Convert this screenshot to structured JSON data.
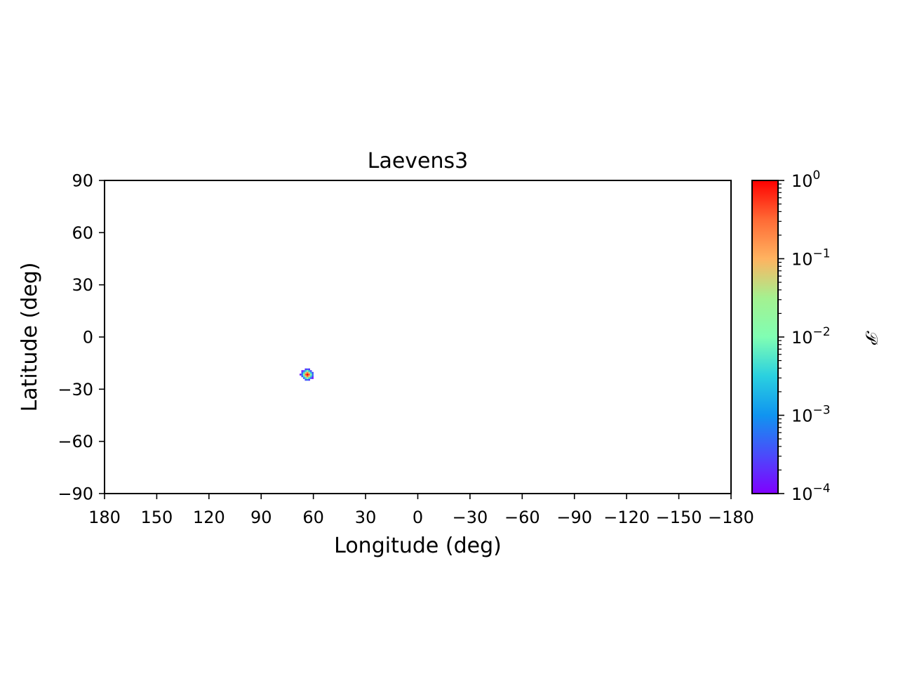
{
  "chart_data": {
    "type": "heatmap",
    "title": "Laevens3",
    "xlabel": "Longitude (deg)",
    "ylabel": "Latitude (deg)",
    "xlim": [
      180,
      -180
    ],
    "ylim": [
      -90,
      90
    ],
    "x_ticks": [
      180,
      150,
      120,
      90,
      60,
      30,
      0,
      -30,
      -60,
      -90,
      -120,
      -150,
      -180
    ],
    "y_ticks": [
      90,
      60,
      30,
      0,
      -30,
      -60,
      -90
    ],
    "x_tick_labels": [
      "180",
      "150",
      "120",
      "90",
      "60",
      "30",
      "0",
      "−30",
      "−60",
      "−90",
      "−120",
      "−150",
      "−180"
    ],
    "y_tick_labels": [
      "90",
      "60",
      "30",
      "0",
      "−30",
      "−60",
      "−90"
    ],
    "grid": false,
    "colorbar": {
      "label": "𝒫",
      "scale": "log",
      "colormap": "rainbow",
      "range": [
        0.0001,
        1
      ],
      "ticks": [
        1,
        0.1,
        0.01,
        0.001,
        0.0001
      ],
      "tick_base": "10",
      "tick_exponents": [
        "0",
        "−1",
        "−2",
        "−3",
        "−4"
      ]
    },
    "blob": {
      "center_lon": 63.5,
      "center_lat": -21.5,
      "points": [
        {
          "lon": 63.4,
          "lat": -21.6,
          "value": 1.0
        },
        {
          "lon": 64.4,
          "lat": -21.6,
          "value": 0.35
        },
        {
          "lon": 62.4,
          "lat": -21.6,
          "value": 0.3
        },
        {
          "lon": 63.4,
          "lat": -20.6,
          "value": 0.25
        },
        {
          "lon": 63.4,
          "lat": -22.6,
          "value": 0.3
        },
        {
          "lon": 64.4,
          "lat": -20.6,
          "value": 0.05
        },
        {
          "lon": 62.4,
          "lat": -20.6,
          "value": 0.04
        },
        {
          "lon": 64.4,
          "lat": -22.6,
          "value": 0.06
        },
        {
          "lon": 62.4,
          "lat": -22.6,
          "value": 0.05
        },
        {
          "lon": 65.4,
          "lat": -21.6,
          "value": 0.02
        },
        {
          "lon": 61.4,
          "lat": -21.6,
          "value": 0.015
        },
        {
          "lon": 63.4,
          "lat": -19.6,
          "value": 0.012
        },
        {
          "lon": 63.4,
          "lat": -23.6,
          "value": 0.02
        },
        {
          "lon": 65.4,
          "lat": -20.6,
          "value": 0.004
        },
        {
          "lon": 65.4,
          "lat": -22.6,
          "value": 0.005
        },
        {
          "lon": 61.4,
          "lat": -20.6,
          "value": 0.003
        },
        {
          "lon": 61.4,
          "lat": -22.6,
          "value": 0.004
        },
        {
          "lon": 64.4,
          "lat": -19.6,
          "value": 0.003
        },
        {
          "lon": 62.4,
          "lat": -19.6,
          "value": 0.002
        },
        {
          "lon": 64.4,
          "lat": -23.6,
          "value": 0.004
        },
        {
          "lon": 62.4,
          "lat": -23.6,
          "value": 0.003
        },
        {
          "lon": 66.4,
          "lat": -21.6,
          "value": 0.0008
        },
        {
          "lon": 60.4,
          "lat": -21.6,
          "value": 0.0006
        },
        {
          "lon": 63.4,
          "lat": -18.6,
          "value": 0.0005
        },
        {
          "lon": 63.4,
          "lat": -24.6,
          "value": 0.0007
        },
        {
          "lon": 66.4,
          "lat": -20.6,
          "value": 0.0004
        },
        {
          "lon": 66.4,
          "lat": -22.6,
          "value": 0.0004
        },
        {
          "lon": 60.4,
          "lat": -20.6,
          "value": 0.0003
        },
        {
          "lon": 60.4,
          "lat": -22.6,
          "value": 0.0003
        },
        {
          "lon": 65.4,
          "lat": -19.6,
          "value": 0.0004
        },
        {
          "lon": 61.4,
          "lat": -19.6,
          "value": 0.0003
        },
        {
          "lon": 65.4,
          "lat": -23.6,
          "value": 0.0005
        },
        {
          "lon": 61.4,
          "lat": -23.6,
          "value": 0.0004
        },
        {
          "lon": 64.4,
          "lat": -18.6,
          "value": 0.0002
        },
        {
          "lon": 62.4,
          "lat": -18.6,
          "value": 0.0002
        },
        {
          "lon": 64.4,
          "lat": -24.6,
          "value": 0.0003
        },
        {
          "lon": 62.4,
          "lat": -24.6,
          "value": 0.0002
        },
        {
          "lon": 67.4,
          "lat": -21.6,
          "value": 0.00015
        },
        {
          "lon": 66.4,
          "lat": -19.6,
          "value": 0.00015
        },
        {
          "lon": 60.4,
          "lat": -23.6,
          "value": 0.00012
        }
      ]
    }
  }
}
